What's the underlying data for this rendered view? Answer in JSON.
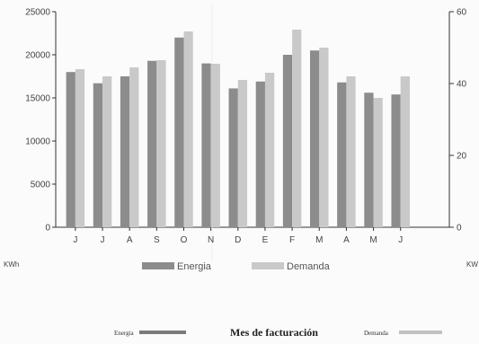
{
  "chart_data": {
    "type": "bar",
    "categories": [
      "J",
      "J",
      "A",
      "S",
      "O",
      "N",
      "D",
      "E",
      "F",
      "M",
      "A",
      "M",
      "J"
    ],
    "series": [
      {
        "name": "Energia",
        "axis": "left",
        "color": "#8c8c8c",
        "values": [
          18000,
          16700,
          17500,
          19300,
          22000,
          19000,
          16100,
          16900,
          20000,
          20500,
          16800,
          15600,
          15400
        ]
      },
      {
        "name": "Demanda",
        "axis": "right",
        "color": "#c9c9c9",
        "values": [
          44,
          42,
          44.5,
          46.5,
          54.5,
          45.5,
          41,
          43,
          55,
          50,
          42,
          36,
          42
        ]
      }
    ],
    "y_left": {
      "min": 0,
      "max": 25000,
      "ticks": [
        0,
        5000,
        10000,
        15000,
        20000,
        25000
      ],
      "tick_labels": [
        "0",
        "5000",
        "10000",
        "15000",
        "20000",
        "25000"
      ]
    },
    "y_right": {
      "min": 0,
      "max": 60,
      "ticks": [
        0,
        20,
        40,
        60
      ],
      "tick_labels": [
        "0",
        "20",
        "40",
        "60"
      ]
    },
    "ylabel_left": "KWh",
    "ylabel_right": "KW",
    "legend": {
      "placement": "bottom",
      "entries": [
        "Energia",
        "Demanda"
      ]
    },
    "caption": {
      "title": "Mes de facturación",
      "legend_left": "Energia",
      "legend_right": "Demanda"
    },
    "grid": false
  }
}
